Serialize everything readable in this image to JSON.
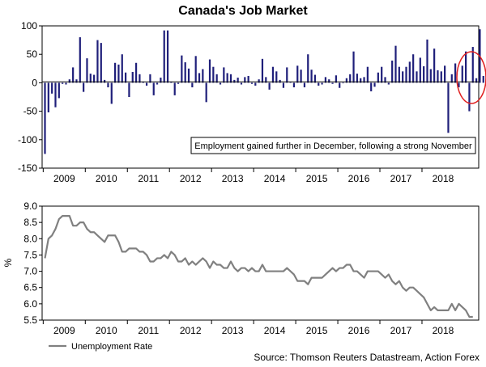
{
  "title": "Canada's Job Market",
  "source": "Source: Thomson Reuters Datastream, Action Forex",
  "colors": {
    "bars": "#1f1f7a",
    "line": "#808080",
    "highlight": "#e02020"
  },
  "chart_data": [
    {
      "type": "bar",
      "name": "employment-change",
      "ylim": [
        -150,
        100
      ],
      "yticks": [
        100,
        50,
        0,
        -50,
        -100,
        -150
      ],
      "year_labels": [
        "2009",
        "2010",
        "2011",
        "2012",
        "2013",
        "2014",
        "2015",
        "2016",
        "2017",
        "2018"
      ],
      "start": "2009-01",
      "values": [
        -125,
        -52,
        -19,
        -43,
        -27,
        -2,
        -3,
        6,
        27,
        6,
        80,
        -16,
        43,
        16,
        14,
        75,
        70,
        5,
        -8,
        -37,
        35,
        32,
        50,
        18,
        -25,
        19,
        35,
        15,
        2,
        -5,
        15,
        -22,
        -3,
        9,
        92,
        92,
        2,
        -22,
        -2,
        48,
        36,
        25,
        -8,
        47,
        17,
        24,
        -34,
        41,
        28,
        15,
        -3,
        27,
        17,
        15,
        5,
        9,
        -3,
        10,
        12,
        -2,
        -5,
        6,
        42,
        10,
        -12,
        28,
        20,
        5,
        -9,
        27,
        1,
        -8,
        30,
        23,
        -8,
        50,
        23,
        14,
        -5,
        -3,
        10,
        6,
        -2,
        13,
        -9,
        -1,
        8,
        15,
        55,
        16,
        8,
        10,
        28,
        -15,
        -7,
        18,
        28,
        10,
        -3,
        39,
        65,
        28,
        20,
        28,
        37,
        50,
        20,
        44,
        29,
        76,
        24,
        60,
        22,
        20,
        30,
        -88,
        15,
        34,
        -8,
        30,
        55,
        -50,
        63,
        8,
        94,
        12,
        -3
      ]
    },
    {
      "type": "line",
      "name": "unemployment-rate",
      "ylabel": "%",
      "ylim": [
        5.5,
        9.0
      ],
      "yticks": [
        9.0,
        8.5,
        8.0,
        7.5,
        7.0,
        6.5,
        6.0,
        5.5
      ],
      "year_labels": [
        "2009",
        "2010",
        "2011",
        "2012",
        "2013",
        "2014",
        "2015",
        "2016",
        "2017",
        "2018"
      ],
      "start": "2009-01",
      "series": [
        {
          "name": "Unemployment Rate",
          "values": [
            7.4,
            8.0,
            8.1,
            8.3,
            8.6,
            8.7,
            8.7,
            8.7,
            8.4,
            8.4,
            8.5,
            8.5,
            8.3,
            8.2,
            8.2,
            8.1,
            8.0,
            7.9,
            8.1,
            8.1,
            8.1,
            7.9,
            7.6,
            7.6,
            7.7,
            7.7,
            7.7,
            7.6,
            7.6,
            7.5,
            7.3,
            7.3,
            7.4,
            7.4,
            7.5,
            7.4,
            7.6,
            7.5,
            7.3,
            7.3,
            7.4,
            7.2,
            7.3,
            7.2,
            7.3,
            7.4,
            7.3,
            7.1,
            7.3,
            7.2,
            7.2,
            7.1,
            7.1,
            7.3,
            7.1,
            7.0,
            7.1,
            7.1,
            7.0,
            7.1,
            7.0,
            7.0,
            7.2,
            7.0,
            7.0,
            7.0,
            7.0,
            7.0,
            7.0,
            7.1,
            7.0,
            6.9,
            6.7,
            6.7,
            6.7,
            6.6,
            6.8,
            6.8,
            6.8,
            6.8,
            6.9,
            7.0,
            7.1,
            7.0,
            7.1,
            7.1,
            7.2,
            7.2,
            7.0,
            7.0,
            6.9,
            6.8,
            7.0,
            7.0,
            7.0,
            7.0,
            6.9,
            6.8,
            6.9,
            6.7,
            6.6,
            6.7,
            6.5,
            6.4,
            6.5,
            6.5,
            6.4,
            6.3,
            6.2,
            6.0,
            5.8,
            5.9,
            5.8,
            5.8,
            5.8,
            5.8,
            6.0,
            5.8,
            6.0,
            5.9,
            5.8,
            5.6,
            5.6
          ]
        }
      ]
    }
  ],
  "annotation": "Employment gained further in December, following a strong November",
  "legend_label": "Unemployment Rate"
}
